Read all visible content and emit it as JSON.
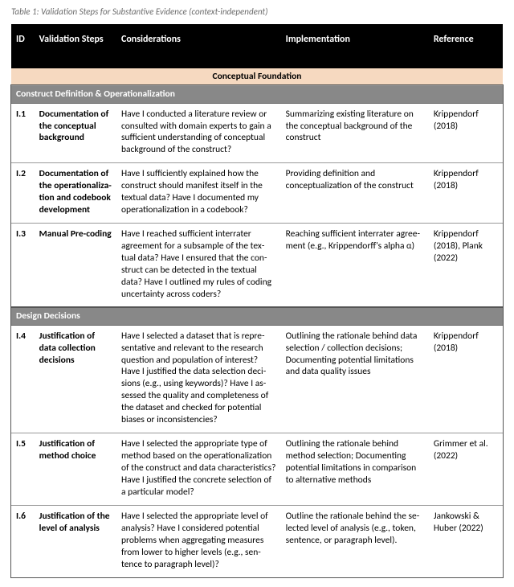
{
  "caption": "Table 1: Validation Steps for Substantive Evidence (context-independent)",
  "columns": {
    "id": "ID",
    "steps": "Validation Steps",
    "considerations": "Considerations",
    "implementation": "Implementation",
    "reference": "Reference"
  },
  "phase": "Conceptual Foundation",
  "section1": "Construct Definition & Operationalization",
  "section2": "Design Decisions",
  "rows": {
    "r1": {
      "id": "I.1",
      "step": "Documenta­tion of the conceptual background",
      "cons": "Have I conducted a literature review or consulted with domain experts to gain a sufficient understanding of conceptual background of the construct?",
      "impl": "Summarizing existing literature on the conceptual background of the construct",
      "ref": "Krippendorf (2018)"
    },
    "r2": {
      "id": "I.2",
      "step": "Documenta­tion of the op­erationaliza­tion and code­book develop­ment",
      "cons": "Have I sufficiently explained how the construct should manifest itself in the textual data? Have I documented my operationalization in a codebook?",
      "impl": "Providing definition and conceptualiza­tion of the construct",
      "ref": "Krippendorf (2018)"
    },
    "r3": {
      "id": "I.3",
      "step": "Manual Pre-coding",
      "cons": "Have I reached sufficient interrater agreement for a subsample of the tex­tual data? Have I ensured that the con­struct can be detected in the textual data? Have I outlined my rules of coding uncertainty across coders?",
      "impl": "Reaching sufficient interrater agree­ment (e.g., Krippendorff's alpha α)",
      "ref": "Krippendorf (2018), Plank (2022)"
    },
    "r4": {
      "id": "I.4",
      "step": "Justification of data collec­tion decisions",
      "cons": "Have I selected a dataset that is repre­sentative and relevant to the research question and population of interest? Have I justified the data selection deci­sions (e.g., using keywords)? Have I as­sessed the quality and completeness of the dataset and checked for potential biases or inconsistencies?",
      "impl": "Outlining the rationale behind data se­lection / collection decisions; Docu­menting potential limitations and data quality issues",
      "ref": "Krippendorf (2018)"
    },
    "r5": {
      "id": "I.5",
      "step": "Justification of method choice",
      "cons": "Have I selected the appropriate type of method based on the operationalization of the construct and data characteris­tics? Have I justified the concrete selec­tion of a particular model?",
      "impl": "Outlining the rationale behind method selection; Documenting potential limi­tations in comparison to alternative methods",
      "ref": "Grimmer et al. (2022)"
    },
    "r6": {
      "id": "I.6",
      "step": "Justification of the level of analysis",
      "cons": "Have I selected the appropriate level of analysis? Have I considered potential problems when aggregating measures from lower to higher levels (e.g., sen­tence to paragraph level)?",
      "impl": "Outline the rationale behind the se­lected level of analysis (e.g., token, sen­tence, or paragraph level).",
      "ref": "Jankowski & Huber (2022)"
    }
  }
}
